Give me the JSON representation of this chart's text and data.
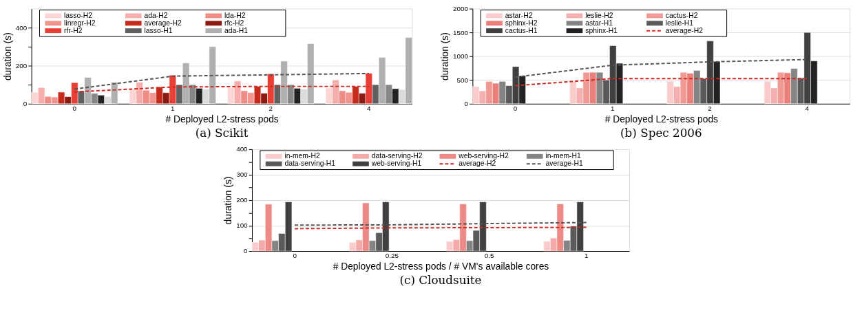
{
  "chart_data": [
    {
      "type": "bar",
      "title": "(a) Scikit",
      "xlabel": "# Deployed L2-stress pods",
      "ylabel": "duration (s)",
      "categories": [
        "0",
        "1",
        "2",
        "4"
      ],
      "ylim": [
        0,
        500
      ],
      "yticks": [
        0,
        {
          "value": 100,
          "label": null
        },
        200,
        {
          "value": 300,
          "label": null
        },
        400
      ],
      "grid": "y",
      "legend": "top left",
      "series": [
        {
          "name": "lasso-H2",
          "color": "#fcd6d4",
          "values": [
            60,
            76,
            84,
            82
          ]
        },
        {
          "name": "ada-H2",
          "color": "#f5aeab",
          "values": [
            85,
            113,
            119,
            125
          ]
        },
        {
          "name": "lda-H2",
          "color": "#f08c86",
          "values": [
            38,
            71,
            68,
            68
          ]
        },
        {
          "name": "linregr-H2",
          "color": "#f2958f",
          "values": [
            35,
            58,
            58,
            60
          ]
        },
        {
          "name": "average-H2",
          "color": "#c62a1c",
          "values": [
            61,
            88,
            91,
            91
          ]
        },
        {
          "name": "rfc-H2",
          "color": "#8b1a12",
          "values": [
            37,
            58,
            55,
            55
          ]
        },
        {
          "name": "rfr-H2",
          "color": "#e83e33",
          "values": [
            111,
            150,
            157,
            160
          ]
        },
        {
          "name": "lasso-H1",
          "color": "#606060",
          "values": [
            67,
            100,
            100,
            100
          ]
        },
        {
          "name": "ada-H1",
          "color": "#b0b0b0",
          "values": [
            138,
            214,
            224,
            243
          ]
        },
        {
          "color": "#888888",
          "values": [
            54,
            100,
            100,
            100
          ]
        },
        {
          "color": "#222222",
          "values": [
            45,
            81,
            81,
            79
          ]
        },
        {
          "color": "#dcdcdc",
          "values": [
            38,
            77,
            77,
            74
          ]
        },
        {
          "color": "#b0b0b0",
          "values": [
            113,
            300,
            316,
            348
          ]
        },
        {
          "type": "line",
          "color": "#cc2a1e",
          "line_style": "dashed",
          "values": [
            62,
            88,
            91,
            91
          ]
        },
        {
          "type": "line",
          "color": "#555555",
          "line_style": "dashed",
          "values": [
            77,
            145,
            152,
            159
          ]
        }
      ]
    },
    {
      "type": "bar",
      "title": "(b) Spec 2006",
      "xlabel": "# Deployed L2-stress pods",
      "ylabel": "duration (s)",
      "categories": [
        "0",
        "1",
        "2",
        "4"
      ],
      "ylim": [
        0,
        2000
      ],
      "yticks": [
        0,
        500,
        1000,
        1500,
        2000
      ],
      "grid": "y",
      "legend": "top left",
      "series": [
        {
          "name": "astar-H2",
          "color": "#f9cccb",
          "values": [
            360,
            470,
            470,
            470
          ]
        },
        {
          "name": "leslie-H2",
          "color": "#f4b0ae",
          "values": [
            270,
            330,
            360,
            330
          ]
        },
        {
          "name": "cactus-H2",
          "color": "#f09a96",
          "values": [
            470,
            660,
            660,
            660
          ]
        },
        {
          "name": "sphinx-H2",
          "color": "#eb7f7a",
          "values": [
            430,
            660,
            640,
            650
          ]
        },
        {
          "name": "astar-H1",
          "color": "#848484",
          "values": [
            470,
            660,
            700,
            740
          ]
        },
        {
          "name": "leslie-H1",
          "color": "#5a5a5a",
          "values": [
            380,
            500,
            530,
            540
          ]
        },
        {
          "name": "cactus-H1",
          "color": "#404040",
          "values": [
            780,
            1220,
            1320,
            1500
          ]
        },
        {
          "name": "sphinx-H1",
          "color": "#222222",
          "values": [
            590,
            850,
            890,
            900
          ]
        },
        {
          "name": "average-H2",
          "type": "line",
          "color": "#cc2a1e",
          "line_style": "dashed",
          "values": [
            380,
            530,
            530,
            530
          ]
        },
        {
          "type": "line",
          "color": "#555555",
          "line_style": "dashed",
          "values": [
            560,
            810,
            880,
            930
          ]
        }
      ]
    },
    {
      "type": "bar",
      "title": "(c) Cloudsuite",
      "xlabel": "# Deployed L2-stress pods / # VM's available cores",
      "ylabel": "duration (s)",
      "categories": [
        "0",
        "0.25",
        "0.5",
        "1"
      ],
      "ylim": [
        0,
        400
      ],
      "yticks": [
        0,
        {
          "value": 50,
          "label": null
        },
        100,
        {
          "value": 150,
          "label": null
        },
        200,
        {
          "value": 250,
          "label": null
        },
        300,
        {
          "value": 350,
          "label": null
        },
        400
      ],
      "grid": "y",
      "legend": "top left",
      "series": [
        {
          "name": "in-mem-H2",
          "color": "#f9cccb",
          "values": [
            34,
            34,
            38,
            38
          ]
        },
        {
          "name": "data-serving-H2",
          "color": "#f4aaa8",
          "values": [
            43,
            44,
            45,
            51
          ]
        },
        {
          "name": "web-serving-H2",
          "color": "#ee8a86",
          "values": [
            184,
            189,
            185,
            185
          ]
        },
        {
          "name": "in-mem-H1",
          "color": "#848484",
          "values": [
            41,
            41,
            41,
            42
          ]
        },
        {
          "name": "data-serving-H1",
          "color": "#5a5a5a",
          "values": [
            69,
            72,
            81,
            98
          ]
        },
        {
          "name": "web-serving-H1",
          "color": "#404040",
          "values": [
            193,
            193,
            193,
            193
          ]
        },
        {
          "name": "average-H2",
          "type": "line",
          "color": "#cc2a1e",
          "line_style": "dashed",
          "values": [
            88,
            91,
            92,
            93
          ]
        },
        {
          "name": "average-H1",
          "type": "line",
          "color": "#555555",
          "line_style": "dashed",
          "values": [
            102,
            103,
            108,
            112
          ]
        }
      ]
    }
  ]
}
